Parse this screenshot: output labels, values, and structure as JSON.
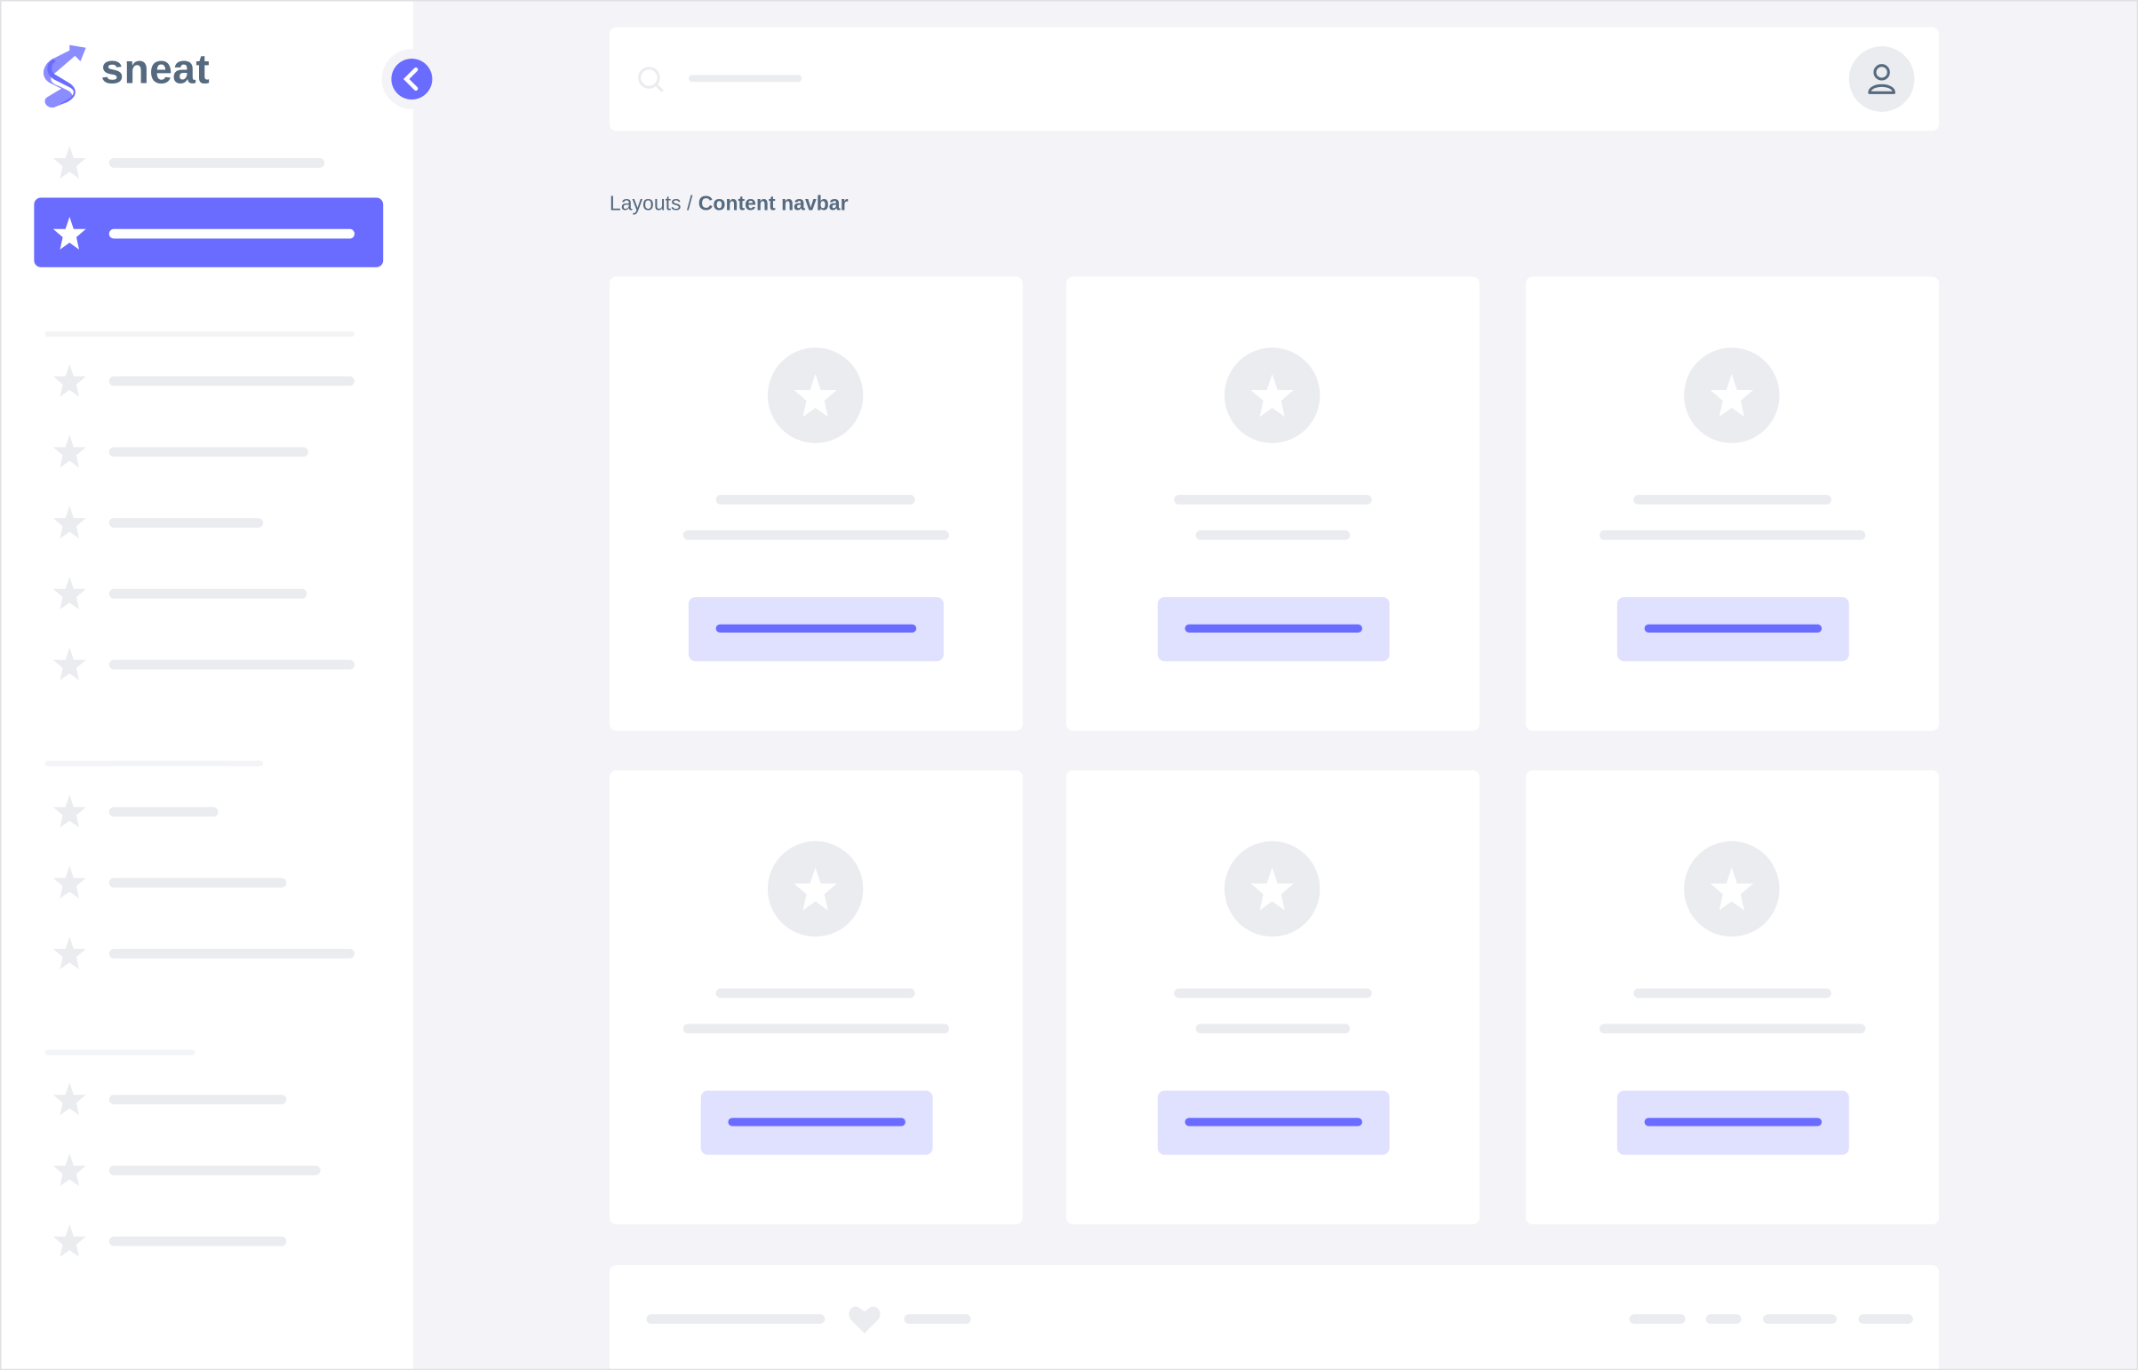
{
  "brand": {
    "name": "sneat",
    "color": "#696cff",
    "text_color": "#566a7f"
  },
  "sidebar": {
    "collapse_icon": "chevron-left-icon",
    "active_index": 1,
    "item_icon": "star-icon"
  },
  "navbar": {
    "search_icon": "search-icon",
    "avatar_icon": "user-icon"
  },
  "breadcrumb": {
    "parent": "Layouts",
    "separator": "/",
    "current": "Content navbar"
  },
  "footer": {
    "icon": "heart-icon"
  },
  "colors": {
    "primary": "#696cff",
    "primary_light": "#e0e0ff",
    "skeleton": "#ebecf0",
    "background": "#f4f4f8"
  }
}
